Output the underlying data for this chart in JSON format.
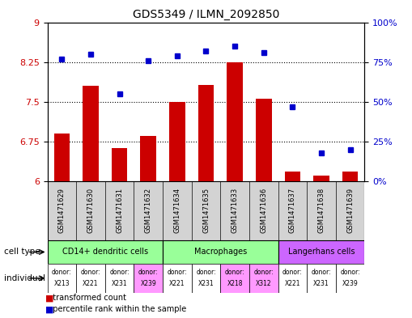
{
  "title": "GDS5349 / ILMN_2092850",
  "samples": [
    "GSM1471629",
    "GSM1471630",
    "GSM1471631",
    "GSM1471632",
    "GSM1471634",
    "GSM1471635",
    "GSM1471633",
    "GSM1471636",
    "GSM1471637",
    "GSM1471638",
    "GSM1471639"
  ],
  "bar_values": [
    6.9,
    7.8,
    6.62,
    6.85,
    7.5,
    7.82,
    8.25,
    7.55,
    6.18,
    6.1,
    6.18
  ],
  "percentile_values": [
    77,
    80,
    55,
    76,
    79,
    82,
    85,
    81,
    47,
    18,
    20
  ],
  "bar_color": "#cc0000",
  "dot_color": "#0000cc",
  "ylim_left": [
    6,
    9
  ],
  "ylim_right": [
    0,
    100
  ],
  "yticks_left": [
    6,
    6.75,
    7.5,
    8.25,
    9
  ],
  "yticks_right": [
    0,
    25,
    50,
    75,
    100
  ],
  "ytick_labels_right": [
    "0%",
    "25%",
    "50%",
    "75%",
    "100%"
  ],
  "hlines": [
    6.75,
    7.5,
    8.25
  ],
  "cell_type_groups": [
    {
      "label": "CD14+ dendritic cells",
      "start": 0,
      "end": 3,
      "color": "#99ff99"
    },
    {
      "label": "Macrophages",
      "start": 4,
      "end": 7,
      "color": "#99ff99"
    },
    {
      "label": "Langerhans cells",
      "start": 8,
      "end": 10,
      "color": "#cc66ff"
    }
  ],
  "donors": [
    "X213",
    "X221",
    "X231",
    "X239",
    "X221",
    "X231",
    "X218",
    "X312",
    "X221",
    "X231",
    "X239"
  ],
  "donor_colors": [
    "#ffffff",
    "#ffffff",
    "#ffffff",
    "#ff99ff",
    "#ffffff",
    "#ffffff",
    "#ff99ff",
    "#ff99ff",
    "#ffffff",
    "#ffffff",
    "#ffffff"
  ],
  "bg_color": "#ffffff",
  "plot_bg": "#ffffff",
  "axis_label_color_left": "#cc0000",
  "axis_label_color_right": "#0000cc",
  "sample_label_bg": "#d3d3d3"
}
